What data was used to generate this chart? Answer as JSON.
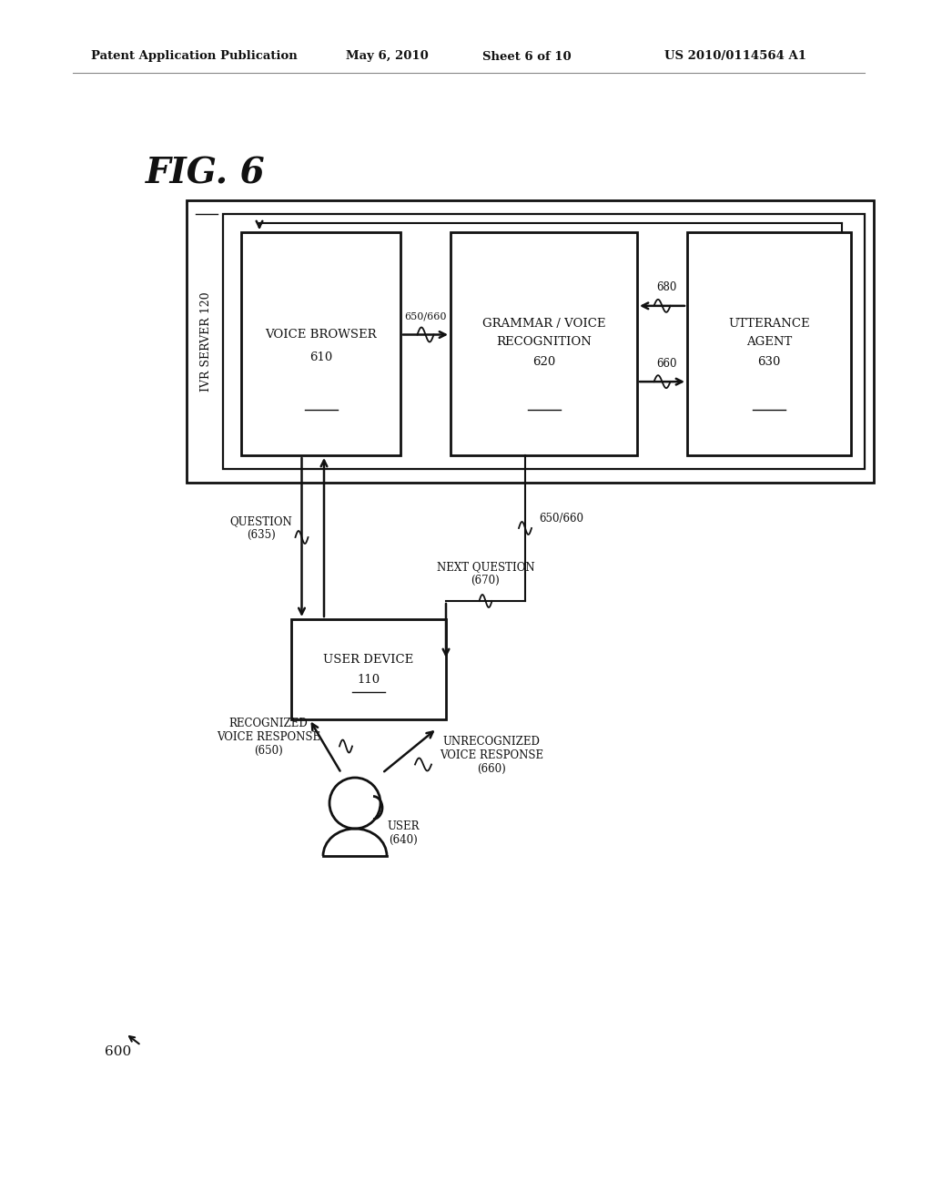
{
  "background_color": "#ffffff",
  "header_text": "Patent Application Publication",
  "header_date": "May 6, 2010",
  "header_sheet": "Sheet 6 of 10",
  "header_patent": "US 2010/0114564 A1",
  "fig_label": "FIG. 6",
  "fig_number": "600",
  "ivr_server_label": "IVR SERVER 120",
  "voice_browser_label": "VOICE BROWSER\n610",
  "grammar_label": "GRAMMAR / VOICE\nRECOGNITION\n620",
  "utterance_label": "UTTERANCE\nAGENT\n630",
  "user_device_label": "USER DEVICE\n110",
  "user_label": "USER\n(640)",
  "label_650_660_top": "650/660",
  "label_680": "680",
  "label_660": "660",
  "label_question": "QUESTION\n(635)",
  "label_650_660_mid": "650/660",
  "label_next_question": "NEXT QUESTION\n(670)",
  "label_recognized": "RECOGNIZED\nVOICE RESPONSE\n(650)",
  "label_unrecognized": "UNRECOGNIZED\nVOICE RESPONSE\n(660)"
}
